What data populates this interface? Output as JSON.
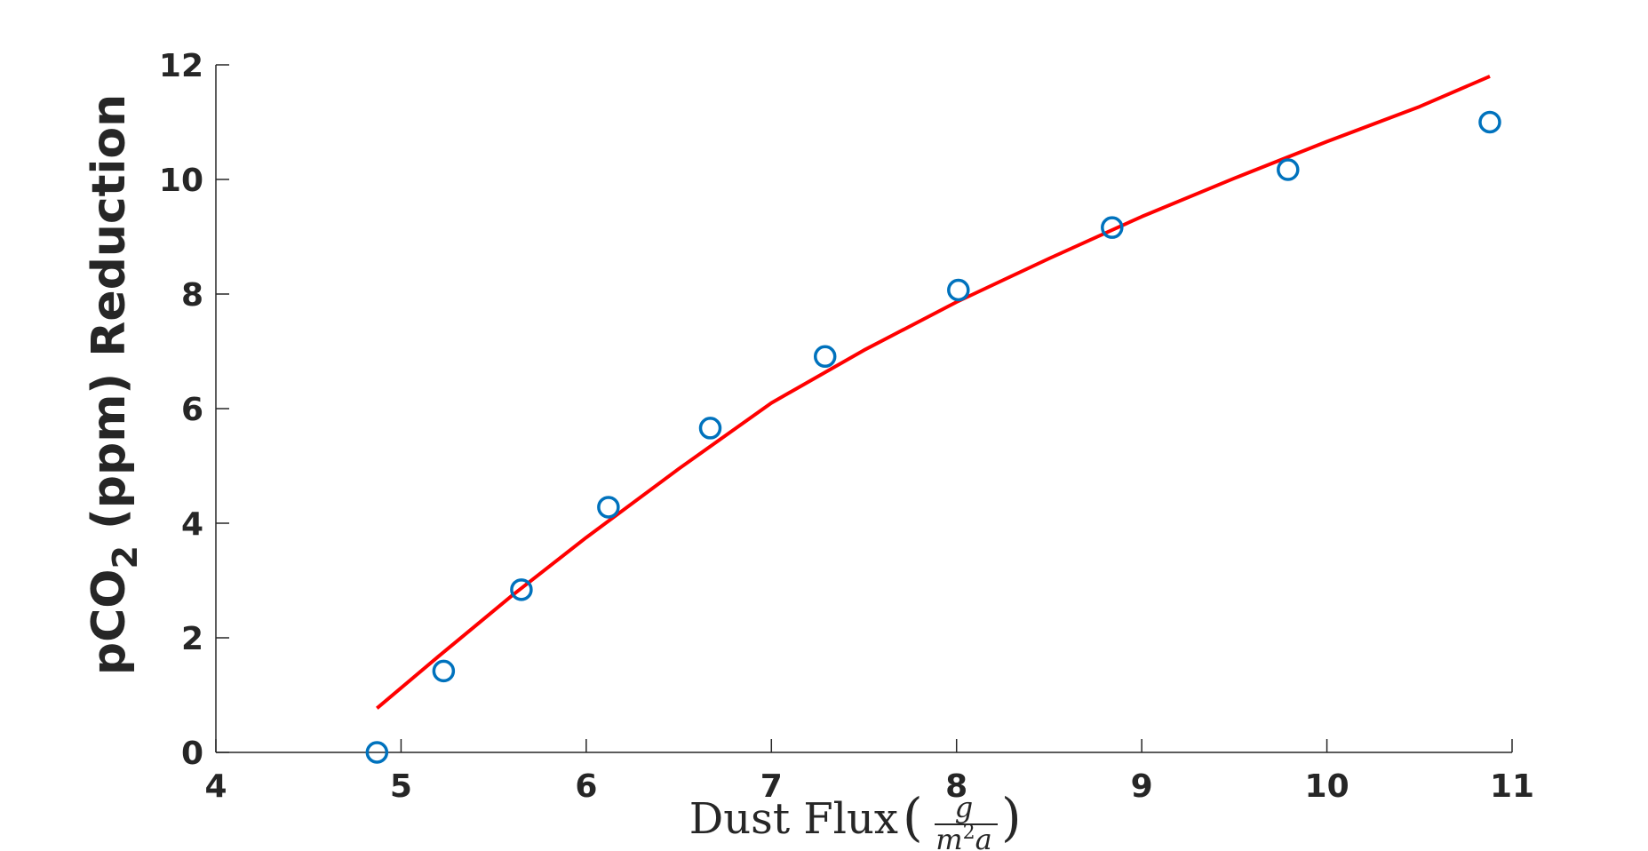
{
  "chart_data": {
    "type": "scatter",
    "xlabel": "Dust Flux",
    "xlabel_unit": {
      "numerator": "g",
      "denominator_base": "m",
      "denominator_exp": "2",
      "denominator_tail": "a"
    },
    "ylabel": {
      "prefix": "pCO",
      "subscript": "2",
      "suffix": " (ppm) Reduction"
    },
    "xlim": [
      4,
      11
    ],
    "ylim": [
      0,
      12
    ],
    "xticks": [
      4,
      5,
      6,
      7,
      8,
      9,
      10,
      11
    ],
    "yticks": [
      0,
      2,
      4,
      6,
      8,
      10,
      12
    ],
    "grid": false,
    "series": [
      {
        "kind": "scatter",
        "marker": "circle-open",
        "color": "#0072BD",
        "x": [
          4.87,
          5.23,
          5.65,
          6.12,
          6.67,
          7.29,
          8.01,
          8.84,
          9.79,
          10.88
        ],
        "y": [
          0.0,
          1.42,
          2.84,
          4.28,
          5.66,
          6.91,
          8.07,
          9.16,
          10.17,
          11.0
        ]
      },
      {
        "kind": "line",
        "color": "#ff0000",
        "x": [
          4.87,
          5.2,
          5.6,
          6.0,
          6.5,
          7.0,
          7.5,
          8.0,
          8.5,
          9.0,
          9.5,
          10.0,
          10.5,
          10.88
        ],
        "y": [
          0.77,
          1.67,
          2.74,
          3.75,
          4.95,
          6.1,
          7.02,
          7.86,
          8.62,
          9.35,
          10.02,
          10.66,
          11.27,
          11.8
        ]
      }
    ]
  }
}
